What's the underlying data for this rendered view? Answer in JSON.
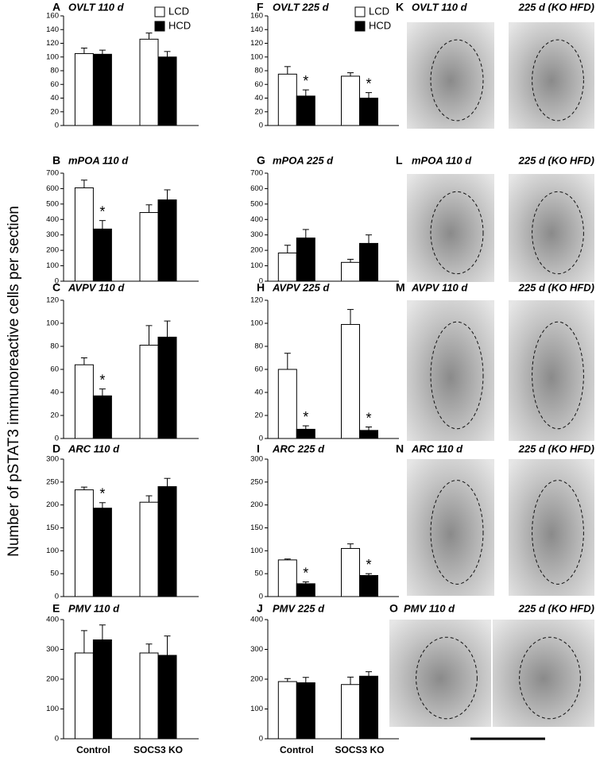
{
  "y_axis_label": "Number of pSTAT3 immunoreactive cells per section",
  "chart_data": [
    {
      "type": "bar",
      "label": "A",
      "title": "OVLT  110 d",
      "categories": [
        null,
        null
      ],
      "ylim": [
        0,
        160
      ],
      "yticks": [
        0,
        20,
        40,
        60,
        80,
        100,
        120,
        140,
        160
      ],
      "series": [
        {
          "name": "LCD",
          "color": "#ffffff",
          "values": [
            105,
            126
          ],
          "errors": [
            8,
            9
          ],
          "marks": [
            null,
            null
          ]
        },
        {
          "name": "HCD",
          "color": "#000000",
          "values": [
            104,
            100
          ],
          "errors": [
            6,
            8
          ],
          "marks": [
            null,
            null
          ]
        }
      ]
    },
    {
      "type": "bar",
      "label": "B",
      "title": "mPOA  110 d",
      "categories": [
        null,
        null
      ],
      "ylim": [
        0,
        700
      ],
      "yticks": [
        0,
        100,
        200,
        300,
        400,
        500,
        600,
        700
      ],
      "series": [
        {
          "color": "#ffffff",
          "values": [
            605,
            445
          ],
          "errors": [
            50,
            50
          ],
          "marks": [
            null,
            null
          ]
        },
        {
          "color": "#000000",
          "values": [
            338,
            527
          ],
          "errors": [
            55,
            65
          ],
          "marks": [
            "*",
            null
          ]
        }
      ]
    },
    {
      "type": "bar",
      "label": "C",
      "title": "AVPV  110 d",
      "categories": [
        null,
        null
      ],
      "ylim": [
        0,
        120
      ],
      "yticks": [
        0,
        20,
        40,
        60,
        80,
        100,
        120
      ],
      "series": [
        {
          "color": "#ffffff",
          "values": [
            64,
            81
          ],
          "errors": [
            6,
            17
          ],
          "marks": [
            null,
            null
          ]
        },
        {
          "color": "#000000",
          "values": [
            37,
            88
          ],
          "errors": [
            6,
            14
          ],
          "marks": [
            "*",
            null
          ]
        }
      ]
    },
    {
      "type": "bar",
      "label": "D",
      "title": "ARC  110 d",
      "categories": [
        null,
        null
      ],
      "ylim": [
        0,
        300
      ],
      "yticks": [
        0,
        50,
        100,
        150,
        200,
        250,
        300
      ],
      "series": [
        {
          "color": "#ffffff",
          "values": [
            233,
            206
          ],
          "errors": [
            6,
            14
          ],
          "marks": [
            null,
            null
          ]
        },
        {
          "color": "#000000",
          "values": [
            193,
            240
          ],
          "errors": [
            12,
            18
          ],
          "marks": [
            "*",
            null
          ]
        }
      ]
    },
    {
      "type": "bar",
      "label": "E",
      "title": "PMV  110 d",
      "categories": [
        "Control",
        "SOCS3 KO"
      ],
      "ylim": [
        0,
        400
      ],
      "yticks": [
        0,
        100,
        200,
        300,
        400
      ],
      "series": [
        {
          "color": "#ffffff",
          "values": [
            288,
            288
          ],
          "errors": [
            75,
            30
          ],
          "marks": [
            null,
            null
          ]
        },
        {
          "color": "#000000",
          "values": [
            332,
            280
          ],
          "errors": [
            50,
            65
          ],
          "marks": [
            null,
            null
          ]
        }
      ]
    },
    {
      "type": "bar",
      "label": "F",
      "title": "OVLT  225 d",
      "categories": [
        null,
        null
      ],
      "ylim": [
        0,
        160
      ],
      "yticks": [
        0,
        20,
        40,
        60,
        80,
        100,
        120,
        140,
        160
      ],
      "series": [
        {
          "name": "LCD",
          "color": "#ffffff",
          "values": [
            75,
            72
          ],
          "errors": [
            11,
            5
          ],
          "marks": [
            null,
            null
          ]
        },
        {
          "name": "HCD",
          "color": "#000000",
          "values": [
            43,
            40
          ],
          "errors": [
            9,
            8
          ],
          "marks": [
            "*",
            "*"
          ]
        }
      ]
    },
    {
      "type": "bar",
      "label": "G",
      "title": "mPOA  225 d",
      "categories": [
        null,
        null
      ],
      "ylim": [
        0,
        700
      ],
      "yticks": [
        0,
        100,
        200,
        300,
        400,
        500,
        600,
        700
      ],
      "series": [
        {
          "color": "#ffffff",
          "values": [
            183,
            122
          ],
          "errors": [
            50,
            20
          ],
          "marks": [
            null,
            null
          ]
        },
        {
          "color": "#000000",
          "values": [
            280,
            245
          ],
          "errors": [
            55,
            55
          ],
          "marks": [
            null,
            null
          ]
        }
      ]
    },
    {
      "type": "bar",
      "label": "H",
      "title": "AVPV  225 d",
      "categories": [
        null,
        null
      ],
      "ylim": [
        0,
        120
      ],
      "yticks": [
        0,
        20,
        40,
        60,
        80,
        100,
        120
      ],
      "series": [
        {
          "color": "#ffffff",
          "values": [
            60,
            99
          ],
          "errors": [
            14,
            13
          ],
          "marks": [
            null,
            null
          ]
        },
        {
          "color": "#000000",
          "values": [
            8,
            7
          ],
          "errors": [
            3,
            3
          ],
          "marks": [
            "*",
            "*"
          ]
        }
      ]
    },
    {
      "type": "bar",
      "label": "I",
      "title": "ARC  225 d",
      "categories": [
        null,
        null
      ],
      "ylim": [
        0,
        300
      ],
      "yticks": [
        0,
        50,
        100,
        150,
        200,
        250,
        300
      ],
      "series": [
        {
          "color": "#ffffff",
          "values": [
            80,
            105
          ],
          "errors": [
            2,
            10
          ],
          "marks": [
            null,
            null
          ]
        },
        {
          "color": "#000000",
          "values": [
            28,
            46
          ],
          "errors": [
            4,
            4
          ],
          "marks": [
            "*",
            "*"
          ]
        }
      ]
    },
    {
      "type": "bar",
      "label": "J",
      "title": "PMV  225 d",
      "categories": [
        "Control",
        "SOCS3 KO"
      ],
      "ylim": [
        0,
        400
      ],
      "yticks": [
        0,
        100,
        200,
        300,
        400
      ],
      "series": [
        {
          "color": "#ffffff",
          "values": [
            192,
            182
          ],
          "errors": [
            10,
            25
          ],
          "marks": [
            null,
            null
          ]
        },
        {
          "color": "#000000",
          "values": [
            188,
            210
          ],
          "errors": [
            18,
            15
          ],
          "marks": [
            null,
            null
          ]
        }
      ]
    }
  ],
  "image_panels": [
    {
      "label": "K",
      "left_title": "OVLT 110 d",
      "right_title": "225 d (KO HFD)"
    },
    {
      "label": "L",
      "left_title": "mPOA 110 d",
      "right_title": "225 d (KO HFD)"
    },
    {
      "label": "M",
      "left_title": "AVPV 110 d",
      "right_title": "225 d (KO HFD)"
    },
    {
      "label": "N",
      "left_title": "ARC 110 d",
      "right_title": "225 d (KO HFD)"
    },
    {
      "label": "O",
      "left_title": "PMV     110 d",
      "right_title": "225 d  (KO HFD)"
    }
  ]
}
